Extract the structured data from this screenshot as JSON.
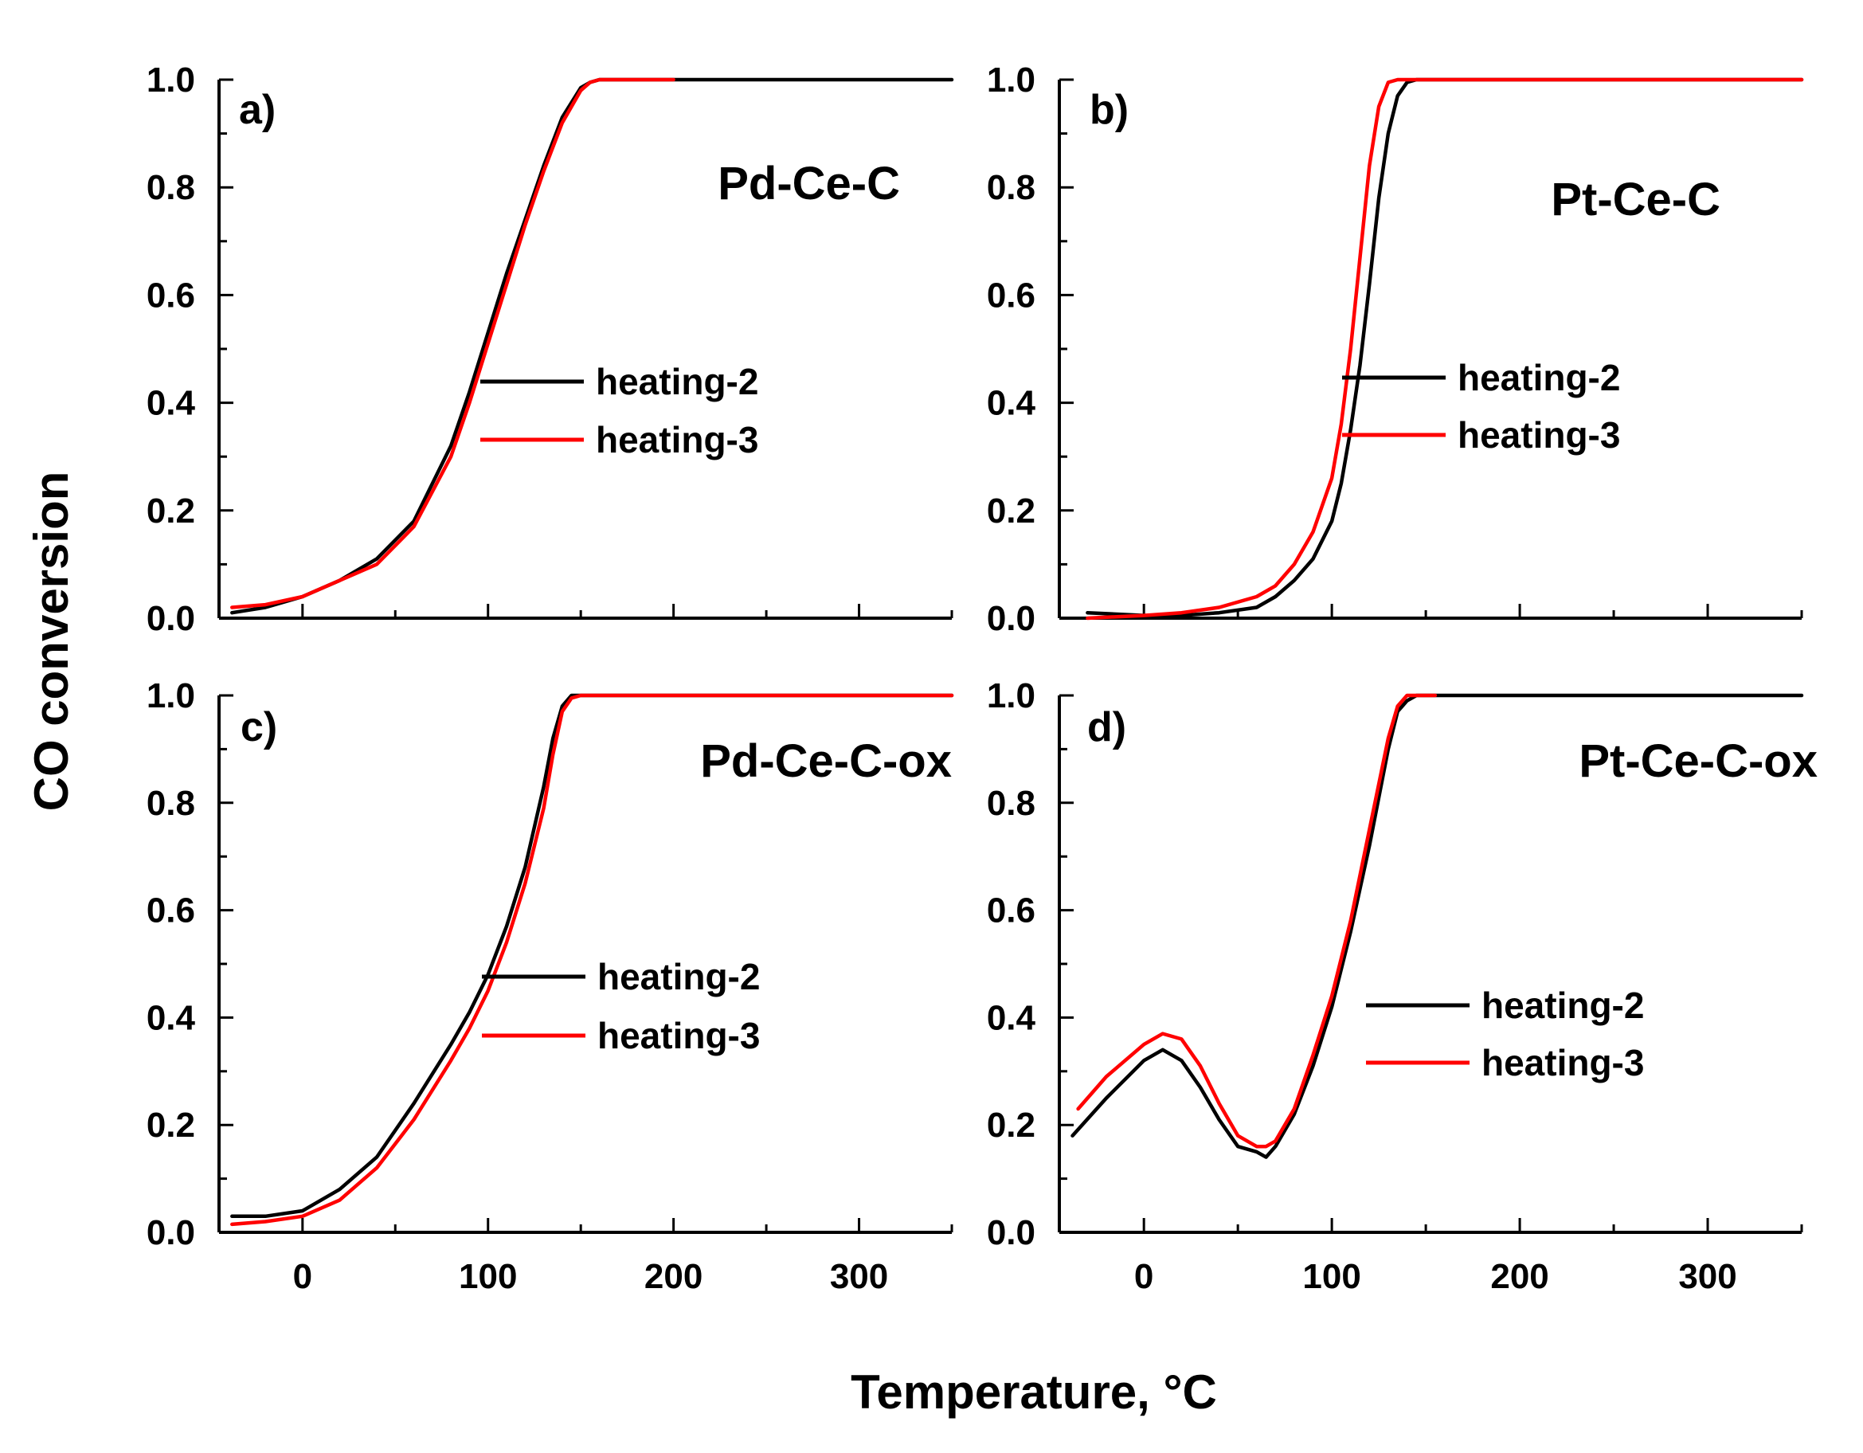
{
  "figure": {
    "y_axis_title": "CO conversion",
    "x_axis_title": "Temperature, °C",
    "xlim": [
      -45,
      350
    ],
    "ylim": [
      0,
      1.0
    ],
    "x_ticks": [
      0,
      100,
      200,
      300
    ],
    "y_ticks": [
      "0.0",
      "0.2",
      "0.4",
      "0.6",
      "0.8",
      "1.0"
    ]
  },
  "chart_data": [
    {
      "type": "line",
      "panel": "a)",
      "title": "Pd-Ce-C",
      "legend": [
        "heating-2",
        "heating-3"
      ],
      "series": [
        {
          "name": "heating-2",
          "color": "#000000",
          "x": [
            -38,
            -20,
            0,
            20,
            40,
            60,
            80,
            90,
            100,
            110,
            120,
            130,
            140,
            150,
            155,
            160,
            170,
            200,
            250,
            350
          ],
          "y": [
            0.01,
            0.02,
            0.04,
            0.07,
            0.11,
            0.18,
            0.32,
            0.42,
            0.53,
            0.64,
            0.74,
            0.84,
            0.93,
            0.985,
            0.995,
            1.0,
            1.0,
            1.0,
            1.0,
            1.0
          ]
        },
        {
          "name": "heating-3",
          "color": "#ff0000",
          "x": [
            -38,
            -20,
            0,
            20,
            40,
            60,
            80,
            90,
            100,
            110,
            120,
            130,
            140,
            150,
            155,
            160,
            170,
            200
          ],
          "y": [
            0.02,
            0.025,
            0.04,
            0.07,
            0.1,
            0.17,
            0.3,
            0.4,
            0.51,
            0.62,
            0.73,
            0.83,
            0.92,
            0.98,
            0.995,
            1.0,
            1.0,
            1.0
          ]
        }
      ]
    },
    {
      "type": "line",
      "panel": "b)",
      "title": "Pt-Ce-C",
      "legend": [
        "heating-2",
        "heating-3"
      ],
      "series": [
        {
          "name": "heating-2",
          "color": "#000000",
          "x": [
            -30,
            0,
            20,
            40,
            60,
            70,
            80,
            90,
            100,
            105,
            110,
            115,
            120,
            125,
            130,
            135,
            140,
            145,
            150,
            200,
            350
          ],
          "y": [
            0.01,
            0.005,
            0.005,
            0.01,
            0.02,
            0.04,
            0.07,
            0.11,
            0.18,
            0.25,
            0.35,
            0.47,
            0.62,
            0.78,
            0.9,
            0.97,
            0.995,
            1.0,
            1.0,
            1.0,
            1.0
          ]
        },
        {
          "name": "heating-3",
          "color": "#ff0000",
          "x": [
            -30,
            0,
            20,
            40,
            60,
            70,
            80,
            90,
            100,
            105,
            110,
            115,
            120,
            125,
            130,
            135,
            140,
            200,
            350
          ],
          "y": [
            0.0,
            0.005,
            0.01,
            0.02,
            0.04,
            0.06,
            0.1,
            0.16,
            0.26,
            0.36,
            0.5,
            0.67,
            0.84,
            0.95,
            0.995,
            1.0,
            1.0,
            1.0,
            1.0
          ]
        }
      ]
    },
    {
      "type": "line",
      "panel": "c)",
      "title": "Pd-Ce-C-ox",
      "legend": [
        "heating-2",
        "heating-3"
      ],
      "series": [
        {
          "name": "heating-2",
          "color": "#000000",
          "x": [
            -38,
            -20,
            0,
            20,
            40,
            60,
            80,
            90,
            100,
            110,
            120,
            130,
            135,
            140,
            145,
            150,
            200,
            350
          ],
          "y": [
            0.03,
            0.03,
            0.04,
            0.08,
            0.14,
            0.24,
            0.35,
            0.41,
            0.48,
            0.57,
            0.68,
            0.83,
            0.92,
            0.98,
            1.0,
            1.0,
            1.0,
            1.0
          ]
        },
        {
          "name": "heating-3",
          "color": "#ff0000",
          "x": [
            -38,
            -20,
            0,
            20,
            40,
            60,
            80,
            90,
            100,
            110,
            120,
            130,
            135,
            140,
            145,
            150,
            200,
            350
          ],
          "y": [
            0.015,
            0.02,
            0.03,
            0.06,
            0.12,
            0.21,
            0.32,
            0.38,
            0.45,
            0.54,
            0.65,
            0.79,
            0.89,
            0.97,
            0.995,
            1.0,
            1.0,
            1.0
          ]
        }
      ]
    },
    {
      "type": "line",
      "panel": "d)",
      "title": "Pt-Ce-C-ox",
      "legend": [
        "heating-2",
        "heating-3"
      ],
      "series": [
        {
          "name": "heating-2",
          "color": "#000000",
          "x": [
            -38,
            -20,
            0,
            10,
            20,
            30,
            40,
            50,
            60,
            65,
            70,
            80,
            90,
            100,
            110,
            120,
            130,
            135,
            140,
            145,
            150,
            200,
            350
          ],
          "y": [
            0.18,
            0.25,
            0.32,
            0.34,
            0.32,
            0.27,
            0.21,
            0.16,
            0.15,
            0.14,
            0.16,
            0.22,
            0.31,
            0.42,
            0.56,
            0.72,
            0.9,
            0.97,
            0.99,
            1.0,
            1.0,
            1.0,
            1.0
          ]
        },
        {
          "name": "heating-3",
          "color": "#ff0000",
          "x": [
            -35,
            -20,
            0,
            10,
            20,
            30,
            40,
            50,
            60,
            65,
            70,
            80,
            90,
            100,
            110,
            120,
            130,
            135,
            140,
            150,
            155
          ],
          "y": [
            0.23,
            0.29,
            0.35,
            0.37,
            0.36,
            0.31,
            0.24,
            0.18,
            0.16,
            0.16,
            0.17,
            0.23,
            0.33,
            0.44,
            0.58,
            0.75,
            0.92,
            0.98,
            1.0,
            1.0,
            1.0
          ]
        }
      ]
    }
  ]
}
